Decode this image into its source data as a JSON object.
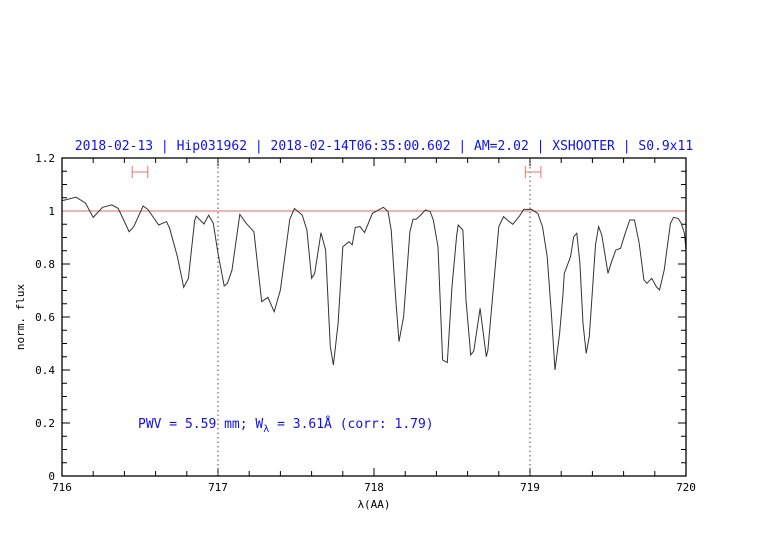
{
  "chart_data": {
    "type": "line",
    "title": "2018-02-13 | Hip031962 | 2018-02-14T06:35:00.602 | AM=2.02 | XSHOOTER | S0.9x11",
    "xlabel": "λ(AA)",
    "ylabel": "norm. flux",
    "xlim": [
      716,
      720
    ],
    "ylim": [
      0,
      1.2
    ],
    "x_ticks": [
      "716",
      "717",
      "718",
      "719",
      "720"
    ],
    "y_ticks": [
      "0",
      "0.2",
      "0.4",
      "0.6",
      "0.8",
      "1",
      "1.2"
    ],
    "grid": false,
    "reference_line_y": 1,
    "vertical_markers_x": [
      717,
      719
    ],
    "range_markers": [
      {
        "x_from": 716.45,
        "x_to": 716.55,
        "y": 1.147
      },
      {
        "x_from": 718.97,
        "x_to": 719.07,
        "y": 1.147
      }
    ],
    "annotation": {
      "prefix": "PWV = 5.59 mm; W",
      "sub": "λ",
      "suffix": " = 3.61Å (corr: 1.79)"
    },
    "colors": {
      "spectrum": "#333333",
      "reference_line": "#e06a6a",
      "range_markers": "#f07070",
      "text": "#1010ee"
    },
    "series": [
      {
        "x": [
          716.0,
          716.01,
          716.09,
          716.15,
          716.2,
          716.26,
          716.32,
          716.36,
          716.43,
          716.46,
          716.52,
          716.55,
          716.62,
          716.67,
          716.69,
          716.74,
          716.78,
          716.81,
          716.85,
          716.86,
          716.91,
          716.94,
          716.97,
          717.0,
          717.04,
          717.06,
          717.09,
          717.14,
          717.18,
          717.23,
          717.28,
          717.32,
          717.36,
          717.4,
          717.46,
          717.49,
          717.54,
          717.57,
          717.6,
          717.62,
          717.66,
          717.69,
          717.72,
          717.74,
          717.77,
          717.8,
          717.84,
          717.86,
          717.88,
          717.91,
          717.94,
          717.99,
          718.02,
          718.06,
          718.09,
          718.11,
          718.14,
          718.16,
          718.19,
          718.23,
          718.25,
          718.27,
          718.29,
          718.33,
          718.36,
          718.38,
          718.41,
          718.44,
          718.47,
          718.5,
          718.53,
          718.54,
          718.57,
          718.59,
          718.62,
          718.64,
          718.68,
          718.72,
          718.73,
          718.76,
          718.8,
          718.83,
          718.86,
          718.89,
          718.93,
          718.96,
          719.01,
          719.05,
          719.08,
          719.11,
          719.14,
          719.16,
          719.19,
          719.21,
          719.22,
          719.26,
          719.28,
          719.3,
          719.32,
          719.34,
          719.36,
          719.38,
          719.42,
          719.44,
          719.46,
          719.5,
          719.52,
          719.55,
          719.58,
          719.61,
          719.64,
          719.67,
          719.7,
          719.73,
          719.75,
          719.78,
          719.81,
          719.83,
          719.86,
          719.9,
          719.92,
          719.95,
          719.97,
          719.99,
          720.0
        ],
        "y": [
          1.04,
          1.04,
          1.052,
          1.03,
          0.976,
          1.014,
          1.023,
          1.01,
          0.922,
          0.941,
          1.019,
          1.006,
          0.947,
          0.96,
          0.935,
          0.828,
          0.712,
          0.746,
          0.963,
          0.981,
          0.951,
          0.984,
          0.954,
          0.84,
          0.717,
          0.727,
          0.777,
          0.987,
          0.954,
          0.922,
          0.658,
          0.674,
          0.62,
          0.702,
          0.969,
          1.01,
          0.985,
          0.928,
          0.746,
          0.765,
          0.918,
          0.853,
          0.488,
          0.419,
          0.576,
          0.865,
          0.884,
          0.872,
          0.938,
          0.941,
          0.919,
          0.991,
          1.001,
          1.014,
          0.998,
          0.928,
          0.664,
          0.507,
          0.601,
          0.922,
          0.969,
          0.969,
          0.979,
          1.004,
          0.998,
          0.966,
          0.865,
          0.438,
          0.428,
          0.714,
          0.909,
          0.947,
          0.928,
          0.664,
          0.457,
          0.472,
          0.633,
          0.45,
          0.475,
          0.677,
          0.941,
          0.979,
          0.963,
          0.95,
          0.979,
          1.006,
          1.006,
          0.991,
          0.941,
          0.828,
          0.589,
          0.4,
          0.538,
          0.677,
          0.765,
          0.828,
          0.903,
          0.916,
          0.803,
          0.576,
          0.463,
          0.526,
          0.872,
          0.941,
          0.909,
          0.765,
          0.803,
          0.853,
          0.859,
          0.916,
          0.966,
          0.966,
          0.878,
          0.74,
          0.727,
          0.746,
          0.714,
          0.702,
          0.777,
          0.953,
          0.976,
          0.972,
          0.953,
          0.916,
          0.853
        ]
      }
    ]
  }
}
